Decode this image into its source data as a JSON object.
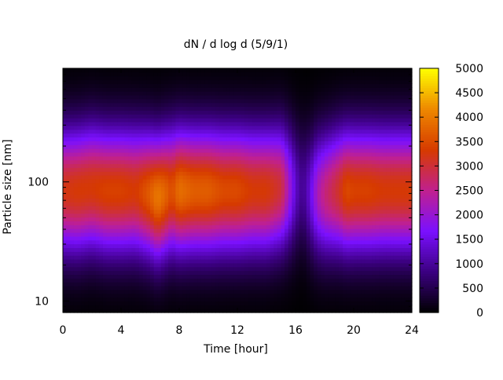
{
  "chart_data": {
    "type": "heatmap",
    "title": "dN / d log d (5/9/1)",
    "xlabel": "Time [hour]",
    "ylabel": "Particle size [nm]",
    "xlim": [
      0,
      24
    ],
    "ylim": [
      8,
      900
    ],
    "yscale": "log",
    "x_ticks": [
      0,
      4,
      8,
      12,
      16,
      20,
      24
    ],
    "y_ticks": [
      10,
      100
    ],
    "colorbar": {
      "min": 0,
      "max": 5000,
      "ticks": [
        0,
        500,
        1000,
        1500,
        2000,
        2500,
        3000,
        3500,
        4000,
        4500,
        5000
      ],
      "palette": [
        "#000000",
        "#3b0080",
        "#7a10ff",
        "#c0208f",
        "#d63a00",
        "#ee8800",
        "#ffff00"
      ]
    },
    "peak_profile": {
      "time_hours": [
        0,
        1,
        2,
        3,
        4,
        5,
        6,
        6.5,
        7,
        7.5,
        8,
        9,
        10,
        11,
        12,
        13,
        14,
        15,
        15.5,
        16,
        16.5,
        17,
        17.5,
        18,
        19,
        19.5,
        20,
        21,
        22,
        23,
        24
      ],
      "peak_diameter_nm": [
        85,
        85,
        90,
        85,
        85,
        85,
        80,
        75,
        80,
        85,
        85,
        85,
        85,
        85,
        85,
        85,
        85,
        90,
        90,
        90,
        90,
        80,
        80,
        80,
        85,
        85,
        85,
        85,
        85,
        85,
        85
      ],
      "peak_value": [
        3200,
        3300,
        3300,
        3400,
        3400,
        3300,
        3700,
        4000,
        3800,
        3500,
        3900,
        3700,
        3700,
        3500,
        3500,
        3300,
        3300,
        3000,
        2200,
        1300,
        900,
        1400,
        2200,
        2600,
        3100,
        3500,
        3400,
        3400,
        3300,
        3300,
        3300
      ]
    }
  }
}
